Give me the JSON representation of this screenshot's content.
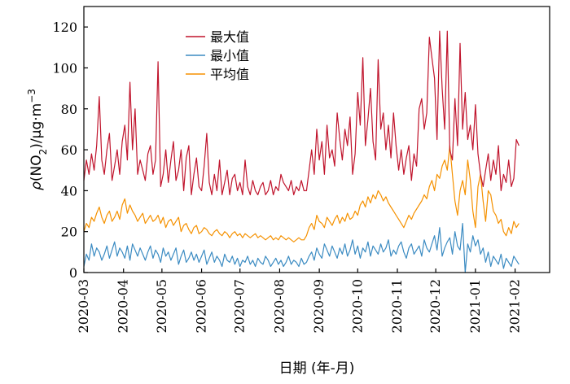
{
  "chart_data": {
    "type": "line",
    "title": "",
    "xlabel": "日期 (年-月)",
    "ylabel": "ρ(NO₂)/μg·m⁻³",
    "ylabel_parts": {
      "rho": "ρ",
      "open": "(NO",
      "sub": "2",
      "mid": ")/μg·m",
      "sup": "−3"
    },
    "ylim": [
      0,
      130
    ],
    "yticks": [
      0,
      20,
      40,
      60,
      80,
      100,
      120
    ],
    "xlim": [
      "2020-03-01",
      "2021-02-28"
    ],
    "xticks": [
      "2020-03",
      "2020-04",
      "2020-05",
      "2020-06",
      "2020-07",
      "2020-08",
      "2020-09",
      "2020-10",
      "2020-11",
      "2020-12",
      "2021-01",
      "2021-02"
    ],
    "legend_position": "top-left",
    "grid": false,
    "sample_interval_days": 2,
    "series": [
      {
        "name": "最大值",
        "color": "#C0142C",
        "values": [
          45,
          55,
          48,
          58,
          50,
          62,
          86,
          55,
          48,
          60,
          68,
          45,
          52,
          60,
          48,
          64,
          72,
          55,
          93,
          60,
          80,
          48,
          55,
          50,
          45,
          58,
          62,
          48,
          55,
          103,
          42,
          48,
          60,
          44,
          55,
          64,
          45,
          50,
          60,
          40,
          56,
          62,
          38,
          48,
          56,
          42,
          40,
          52,
          68,
          44,
          38,
          48,
          40,
          55,
          38,
          44,
          50,
          38,
          46,
          48,
          40,
          44,
          38,
          55,
          42,
          38,
          45,
          40,
          38,
          42,
          44,
          38,
          40,
          45,
          38,
          42,
          40,
          48,
          44,
          42,
          40,
          45,
          38,
          42,
          40,
          45,
          40,
          40,
          50,
          60,
          48,
          70,
          55,
          64,
          48,
          72,
          56,
          60,
          52,
          78,
          65,
          55,
          70,
          62,
          76,
          48,
          58,
          88,
          72,
          105,
          62,
          75,
          90,
          64,
          55,
          104,
          70,
          78,
          60,
          72,
          56,
          78,
          62,
          50,
          60,
          48,
          56,
          62,
          45,
          58,
          52,
          80,
          85,
          70,
          78,
          115,
          105,
          95,
          65,
          118,
          90,
          70,
          118,
          60,
          55,
          85,
          62,
          112,
          70,
          88,
          65,
          72,
          60,
          82,
          58,
          48,
          42,
          50,
          58,
          45,
          55,
          48,
          62,
          40,
          48,
          44,
          55,
          42,
          46,
          65,
          62
        ]
      },
      {
        "name": "最小值",
        "color": "#3B8BC2",
        "values": [
          3,
          9,
          6,
          14,
          8,
          12,
          10,
          6,
          9,
          13,
          7,
          11,
          15,
          8,
          12,
          10,
          7,
          13,
          6,
          14,
          11,
          8,
          12,
          9,
          6,
          10,
          13,
          7,
          11,
          9,
          5,
          12,
          8,
          10,
          6,
          9,
          12,
          4,
          8,
          11,
          5,
          7,
          10,
          6,
          9,
          5,
          8,
          11,
          4,
          7,
          10,
          5,
          8,
          6,
          3,
          9,
          6,
          5,
          8,
          4,
          7,
          3,
          6,
          5,
          8,
          4,
          6,
          3,
          7,
          5,
          4,
          8,
          6,
          3,
          5,
          7,
          4,
          6,
          3,
          5,
          8,
          4,
          6,
          5,
          3,
          7,
          4,
          5,
          8,
          10,
          6,
          12,
          9,
          7,
          14,
          11,
          8,
          13,
          10,
          7,
          12,
          9,
          14,
          8,
          11,
          16,
          9,
          13,
          7,
          12,
          10,
          15,
          8,
          13,
          11,
          9,
          14,
          10,
          12,
          16,
          8,
          11,
          9,
          13,
          15,
          10,
          7,
          12,
          14,
          9,
          11,
          13,
          8,
          16,
          12,
          10,
          14,
          18,
          11,
          22,
          8,
          12,
          15,
          17,
          9,
          20,
          13,
          11,
          24,
          0,
          14,
          10,
          18,
          13,
          16,
          9,
          12,
          5,
          10,
          3,
          8,
          6,
          4,
          9,
          2,
          7,
          5,
          3,
          8,
          6,
          4
        ]
      },
      {
        "name": "平均值",
        "color": "#F59100",
        "values": [
          20,
          24,
          22,
          27,
          25,
          29,
          32,
          27,
          24,
          28,
          30,
          25,
          27,
          30,
          26,
          33,
          36,
          29,
          33,
          30,
          28,
          25,
          27,
          29,
          24,
          26,
          28,
          25,
          26,
          28,
          24,
          27,
          22,
          25,
          26,
          23,
          25,
          27,
          20,
          23,
          24,
          21,
          19,
          22,
          23,
          19,
          20,
          22,
          21,
          19,
          18,
          20,
          21,
          19,
          18,
          20,
          19,
          17,
          19,
          20,
          18,
          19,
          17,
          19,
          18,
          17,
          18,
          19,
          17,
          18,
          17,
          16,
          17,
          18,
          16,
          17,
          16,
          18,
          17,
          16,
          17,
          16,
          15,
          16,
          17,
          16,
          16,
          18,
          22,
          24,
          21,
          28,
          25,
          24,
          22,
          27,
          25,
          23,
          26,
          28,
          24,
          27,
          25,
          29,
          26,
          27,
          30,
          28,
          33,
          35,
          32,
          37,
          34,
          38,
          36,
          40,
          38,
          35,
          37,
          34,
          32,
          30,
          28,
          26,
          24,
          22,
          25,
          28,
          26,
          29,
          31,
          33,
          35,
          38,
          36,
          42,
          45,
          40,
          48,
          46,
          52,
          55,
          50,
          62,
          48,
          35,
          28,
          40,
          45,
          38,
          55,
          45,
          30,
          22,
          42,
          48,
          35,
          25,
          40,
          38,
          30,
          28,
          24,
          26,
          20,
          18,
          22,
          19,
          25,
          22,
          24
        ]
      }
    ]
  }
}
